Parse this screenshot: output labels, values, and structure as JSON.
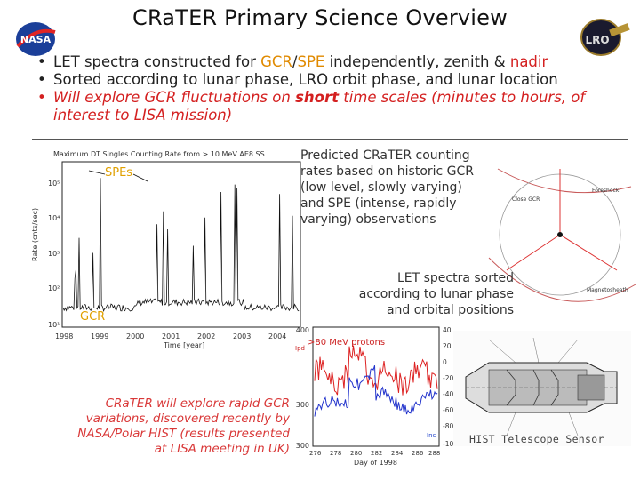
{
  "slide": {
    "title": "CRaTER Primary Science Overview",
    "logos": {
      "nasa": "NASA",
      "lro": "LRO"
    },
    "bullets": [
      {
        "pre": "LET spectra constructed for ",
        "gcr": "GCR",
        "slash": "/",
        "spe": "SPE",
        "mid": " independently, zenith & ",
        "nadir": "nadir"
      },
      {
        "text": "Sorted according to lunar phase, LRO orbit phase, and lunar location"
      },
      {
        "pre": "Will explore GCR fluctuations on ",
        "bold": "short",
        "post": " time scales (minutes to hours, of interest to LISA mission)"
      }
    ],
    "chart1": {
      "title": "Maximum DT Singles Counting Rate from > 10 MeV AE8 SS",
      "ylabel": "Rate (cnts/sec)",
      "xlabel": "Time [year]",
      "xticks": [
        "1998",
        "1999",
        "2000",
        "2001",
        "2002",
        "2003",
        "2004"
      ],
      "yticks": [
        "10⁵",
        "10⁴",
        "10³",
        "10²",
        "10¹"
      ],
      "label_spe": "SPEs",
      "label_gcr": "GCR"
    },
    "caption1": "Predicted CRaTER counting rates based on historic GCR (low level, slowly varying) and SPE (intense, rapidly varying) observations",
    "orbit": {
      "labels": [
        "Close GCR",
        "Foreshock",
        "Magnetosheath"
      ]
    },
    "caption2": "LET spectra sorted according to lunar phase and orbital positions",
    "chart2": {
      "title": ">80 MeV protons",
      "tag": "Ipd",
      "xlabel": "Day of 1998",
      "xticks": [
        "276",
        "278",
        "280",
        "282",
        "284",
        "286",
        "288"
      ],
      "yleft": [
        "1400",
        "1300",
        "1300"
      ],
      "yright": [
        "40",
        "20",
        "0",
        "-20",
        "-40",
        "-60",
        "-80",
        "-100"
      ],
      "legend_tag": "Inc"
    },
    "caption3": "CRaTER will explore rapid GCR variations, discovered recently by NASA/Polar HIST (results presented at LISA meeting in UK)",
    "telescope": {
      "caption": "HIST Telescope Sensor"
    }
  }
}
